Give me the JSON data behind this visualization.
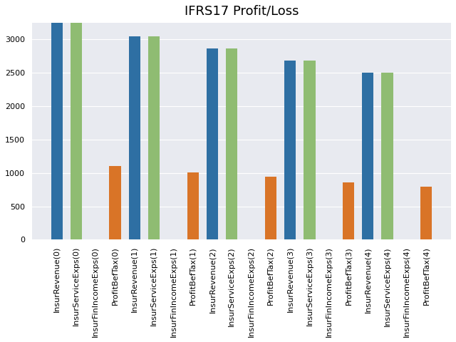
{
  "title": "IFRS17 Profit/Loss",
  "categories": [
    "InsurRevenue(0)",
    "InsurServiceExps(0)",
    "InsurFinIncomeExps(0)",
    "ProfitBefTax(0)",
    "InsurRevenue(1)",
    "InsurServiceExps(1)",
    "InsurFinIncomeExps(1)",
    "ProfitBefTax(1)",
    "InsurRevenue(2)",
    "InsurServiceExps(2)",
    "InsurFinIncomeExps(2)",
    "ProfitBefTax(2)",
    "InsurRevenue(3)",
    "InsurServiceExps(3)",
    "InsurFinIncomeExps(3)",
    "ProfitBefTax(3)",
    "InsurRevenue(4)",
    "InsurServiceExps(4)",
    "InsurFinIncomeExps(4)",
    "ProfitBefTax(4)"
  ],
  "values": [
    3250,
    3250,
    0,
    1100,
    3050,
    3050,
    0,
    1010,
    2870,
    2870,
    0,
    940,
    2680,
    2680,
    0,
    860,
    2500,
    2500,
    0,
    790
  ],
  "colors": [
    "#2e6fa3",
    "#8fbc72",
    "#2e6fa3",
    "#d97427",
    "#2e6fa3",
    "#8fbc72",
    "#2e6fa3",
    "#d97427",
    "#2e6fa3",
    "#8fbc72",
    "#2e6fa3",
    "#d97427",
    "#2e6fa3",
    "#8fbc72",
    "#2e6fa3",
    "#d97427",
    "#2e6fa3",
    "#8fbc72",
    "#2e6fa3",
    "#d97427"
  ],
  "ax_background_color": "#e8eaf0",
  "fig_background_color": "#ffffff",
  "ylim": [
    0,
    3250
  ],
  "yticks": [
    0,
    500,
    1000,
    1500,
    2000,
    2500,
    3000
  ],
  "title_fontsize": 13,
  "tick_fontsize": 8,
  "bar_width": 0.6
}
